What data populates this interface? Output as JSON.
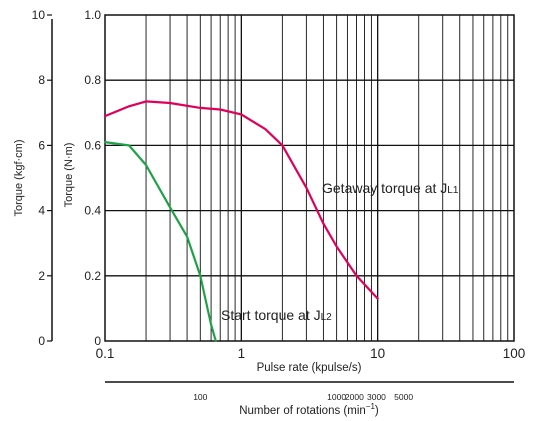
{
  "chart_data": {
    "type": "line",
    "x_axis": {
      "label": "Pulse rate (kpulse/s)",
      "scale": "log",
      "range": [
        0.1,
        100
      ],
      "ticks": [
        {
          "value": 0.1,
          "label": "0.1"
        },
        {
          "value": 1,
          "label": "1"
        },
        {
          "value": 10,
          "label": "10"
        },
        {
          "value": 100,
          "label": "100"
        }
      ]
    },
    "y_axis_right": {
      "label": "Torque (N·m)",
      "range": [
        0,
        1.0
      ],
      "ticks": [
        {
          "value": 0,
          "label": "0"
        },
        {
          "value": 0.2,
          "label": "0.2"
        },
        {
          "value": 0.4,
          "label": "0.4"
        },
        {
          "value": 0.6,
          "label": "0.6"
        },
        {
          "value": 0.8,
          "label": "0.8"
        },
        {
          "value": 1.0,
          "label": "1.0"
        }
      ]
    },
    "y_axis_left": {
      "label": "Torque (kgf·cm)",
      "range": [
        0,
        10
      ],
      "ticks": [
        {
          "value": 0,
          "label": "0"
        },
        {
          "value": 2,
          "label": "2"
        },
        {
          "value": 4,
          "label": "4"
        },
        {
          "value": 6,
          "label": "6"
        },
        {
          "value": 8,
          "label": "8"
        },
        {
          "value": 10,
          "label": "10"
        }
      ]
    },
    "rotation_axis": {
      "label": "Number of rotations (min",
      "label_sup": "−1",
      "label_tail": ")",
      "ticks": [
        {
          "value": 100,
          "label": "100",
          "pulse_rate": 0.5
        },
        {
          "value": 1000,
          "label": "1000",
          "pulse_rate": 5
        },
        {
          "value": 2000,
          "label": "2000",
          "pulse_rate": 6.75
        },
        {
          "value": 3000,
          "label": "3000",
          "pulse_rate": 9.8
        },
        {
          "value": 5000,
          "label": "5000",
          "pulse_rate": 15.5
        }
      ]
    },
    "grid": true,
    "series": [
      {
        "name": "Getaway torque at JL1",
        "color": "#e0005a",
        "points": [
          [
            0.1,
            0.69
          ],
          [
            0.15,
            0.72
          ],
          [
            0.2,
            0.735
          ],
          [
            0.3,
            0.73
          ],
          [
            0.5,
            0.715
          ],
          [
            0.7,
            0.71
          ],
          [
            1.0,
            0.695
          ],
          [
            1.5,
            0.65
          ],
          [
            2.0,
            0.6
          ],
          [
            3.0,
            0.47
          ],
          [
            4.0,
            0.36
          ],
          [
            5.0,
            0.29
          ],
          [
            7.0,
            0.2
          ],
          [
            10.0,
            0.13
          ]
        ]
      },
      {
        "name": "Start torque at JL2",
        "color": "#1ea246",
        "points": [
          [
            0.1,
            0.61
          ],
          [
            0.15,
            0.6
          ],
          [
            0.2,
            0.54
          ],
          [
            0.3,
            0.41
          ],
          [
            0.4,
            0.32
          ],
          [
            0.5,
            0.2
          ],
          [
            0.6,
            0.05
          ],
          [
            0.65,
            0.0
          ]
        ]
      }
    ],
    "annotations": [
      {
        "text": "Getaway torque at J",
        "sub": "L1"
      },
      {
        "text": "Start torque at J",
        "sub": "L2"
      }
    ]
  }
}
